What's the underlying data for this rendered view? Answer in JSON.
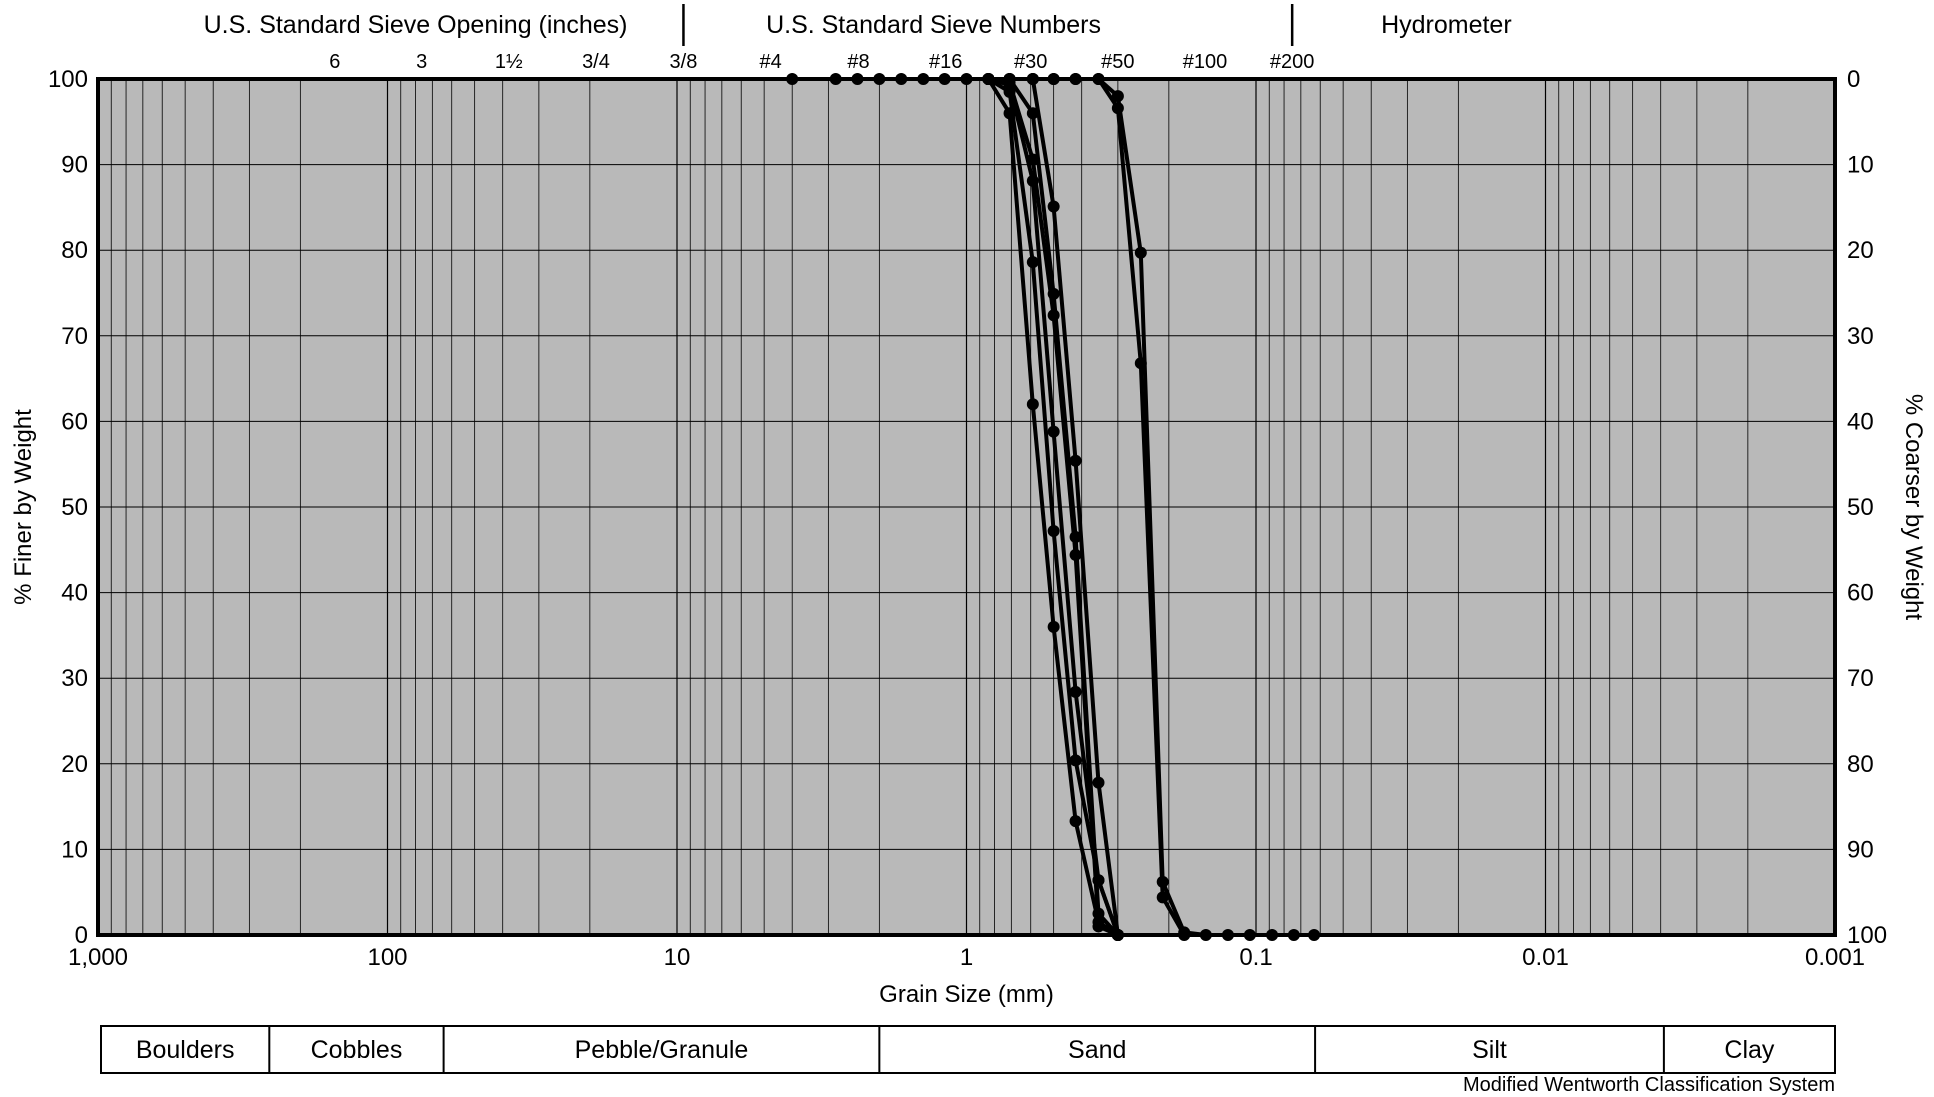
{
  "chart_data": {
    "type": "scatter",
    "title": "",
    "xlabel": "Grain Size (mm)",
    "ylabel": "% Finer by Weight",
    "ylabel_right": "% Coarser by Weight",
    "x_scale": "log",
    "x_reversed": true,
    "xlim": [
      1000,
      0.001
    ],
    "ylim": [
      0,
      100
    ],
    "x_ticks": [
      {
        "value": 1000,
        "label": "1,000"
      },
      {
        "value": 100,
        "label": "100"
      },
      {
        "value": 10,
        "label": "10"
      },
      {
        "value": 1,
        "label": "1"
      },
      {
        "value": 0.1,
        "label": "0.1"
      },
      {
        "value": 0.01,
        "label": "0.01"
      },
      {
        "value": 0.001,
        "label": "0.001"
      }
    ],
    "y_ticks_left": [
      0,
      10,
      20,
      30,
      40,
      50,
      60,
      70,
      80,
      90,
      100
    ],
    "y_ticks_right": [
      100,
      90,
      80,
      70,
      60,
      50,
      40,
      30,
      20,
      10,
      0
    ],
    "grid": true,
    "legend": "none",
    "colors": {
      "background": "#b9b9b9",
      "series": "#000000",
      "grid": "#000000"
    },
    "top_header": {
      "groups": [
        {
          "label": "U.S. Standard Sieve Opening (inches)",
          "x": 80
        },
        {
          "label": "U.S. Standard Sieve Numbers",
          "x": 1.3
        },
        {
          "label": "Hydrometer",
          "x": 0.022
        }
      ],
      "dividers": [
        9.5,
        0.075
      ],
      "sieves": [
        {
          "label": "6",
          "x": 152
        },
        {
          "label": "3",
          "x": 76.2
        },
        {
          "label": "1½",
          "x": 38.1
        },
        {
          "label": "3/4",
          "x": 19.05
        },
        {
          "label": "3/8",
          "x": 9.5
        },
        {
          "label": "#4",
          "x": 4.75
        },
        {
          "label": "#8",
          "x": 2.36
        },
        {
          "label": "#16",
          "x": 1.18
        },
        {
          "label": "#30",
          "x": 0.6
        },
        {
          "label": "#50",
          "x": 0.3
        },
        {
          "label": "#100",
          "x": 0.15
        },
        {
          "label": "#200",
          "x": 0.075
        }
      ]
    },
    "classification": {
      "note": "Modified Wentworth Classification System",
      "classes": [
        {
          "label": "Boulders",
          "from": 1000,
          "to": 256
        },
        {
          "label": "Cobbles",
          "from": 256,
          "to": 64
        },
        {
          "label": "Pebble/Granule",
          "from": 64,
          "to": 2
        },
        {
          "label": "Sand",
          "from": 2,
          "to": 0.0625
        },
        {
          "label": "Silt",
          "from": 0.0625,
          "to": 0.0039
        },
        {
          "label": "Clay",
          "from": 0.0039,
          "to": 0.001
        }
      ]
    },
    "series": [
      {
        "x": [
          4.0,
          2.83,
          2.38,
          2.0,
          1.68,
          1.41,
          1.19,
          1.0,
          0.84,
          0.71,
          0.59,
          0.5,
          0.42,
          0.35,
          0.3,
          0.25,
          0.21,
          0.177,
          0.149,
          0.125,
          0.105,
          0.088,
          0.074,
          0.063
        ],
        "y": [
          100,
          100,
          100,
          100,
          100,
          100,
          100,
          100,
          100,
          100,
          100,
          100,
          100,
          100,
          98,
          79.7,
          6.2,
          0.3,
          0,
          0,
          0,
          0,
          0,
          0
        ]
      },
      {
        "x": [
          0.84,
          0.71,
          0.59,
          0.5,
          0.42,
          0.35,
          0.3,
          0.25,
          0.21,
          0.177
        ],
        "y": [
          100,
          100,
          100,
          100,
          100,
          100,
          96.6,
          66.8,
          4.4,
          0
        ]
      },
      {
        "x": [
          0.84,
          0.71,
          0.59,
          0.5,
          0.42,
          0.35,
          0.3
        ],
        "y": [
          100,
          96,
          62,
          36,
          13.3,
          1.5,
          0
        ]
      },
      {
        "x": [
          0.84,
          0.71,
          0.59,
          0.5,
          0.42,
          0.35,
          0.3
        ],
        "y": [
          100,
          98.5,
          78.6,
          47.2,
          20.4,
          6.4,
          0
        ]
      },
      {
        "x": [
          0.84,
          0.71,
          0.59,
          0.5,
          0.42,
          0.35,
          0.3
        ],
        "y": [
          100,
          99.3,
          88.1,
          58.8,
          28.4,
          6.4,
          0
        ]
      },
      {
        "x": [
          0.84,
          0.71,
          0.59,
          0.5,
          0.42,
          0.35,
          0.3
        ],
        "y": [
          100,
          99.6,
          90.6,
          72.4,
          44.4,
          1.0,
          0
        ]
      },
      {
        "x": [
          0.84,
          0.71,
          0.59,
          0.5,
          0.42,
          0.35,
          0.3
        ],
        "y": [
          100,
          100,
          96,
          74.9,
          46.5,
          2.5,
          0
        ]
      },
      {
        "x": [
          0.84,
          0.71,
          0.59,
          0.5,
          0.42,
          0.35,
          0.3
        ],
        "y": [
          100,
          100,
          100,
          85.1,
          55.4,
          17.8,
          0
        ]
      }
    ]
  }
}
